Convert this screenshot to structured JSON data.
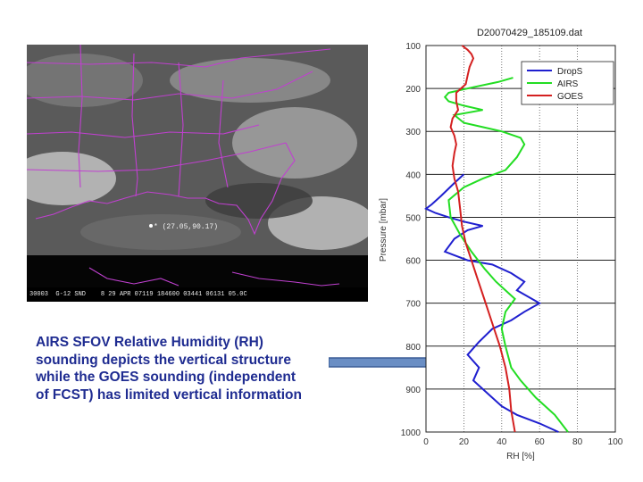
{
  "satellite": {
    "marker_label": "* (27.05,90.17)",
    "bottom_caption": "30003  G-12 SND    8 29 APR 07119 184600 03441 06131 05.0C",
    "boundary_color": "#c040d0"
  },
  "caption": {
    "lines": [
      "AIRS SFOV Relative Humidity (RH)",
      "sounding depicts the vertical structure",
      "while the GOES sounding (independent",
      "of FCST) has limited vertical information"
    ],
    "color": "#1f2c91"
  },
  "arrow": {
    "fill": "#6a8ec4",
    "stroke": "#3b5d96"
  },
  "chart_data": {
    "type": "line",
    "title": "D20070429_185109.dat",
    "xlabel": "RH [%]",
    "ylabel": "Pressure [mbar]",
    "xlim": [
      0,
      100
    ],
    "ylim": [
      1000,
      100
    ],
    "xticks": [
      0,
      20,
      40,
      60,
      80,
      100
    ],
    "yticks": [
      100,
      200,
      300,
      400,
      500,
      600,
      700,
      800,
      900,
      1000
    ],
    "grid": true,
    "legend_position": "top-right",
    "series": [
      {
        "name": "DropS",
        "color": "#1f1fcf",
        "points": [
          [
            20,
            400
          ],
          [
            15,
            420
          ],
          [
            8,
            450
          ],
          [
            3,
            470
          ],
          [
            0,
            480
          ],
          [
            5,
            490
          ],
          [
            12,
            500
          ],
          [
            20,
            510
          ],
          [
            30,
            520
          ],
          [
            22,
            530
          ],
          [
            15,
            550
          ],
          [
            10,
            580
          ],
          [
            22,
            600
          ],
          [
            35,
            610
          ],
          [
            45,
            630
          ],
          [
            52,
            650
          ],
          [
            48,
            670
          ],
          [
            56,
            690
          ],
          [
            60,
            700
          ],
          [
            52,
            720
          ],
          [
            45,
            740
          ],
          [
            35,
            760
          ],
          [
            28,
            790
          ],
          [
            22,
            820
          ],
          [
            28,
            850
          ],
          [
            25,
            880
          ],
          [
            30,
            900
          ],
          [
            35,
            920
          ],
          [
            40,
            940
          ],
          [
            48,
            960
          ],
          [
            60,
            980
          ],
          [
            70,
            1000
          ]
        ]
      },
      {
        "name": "AIRS",
        "color": "#22dd22",
        "points": [
          [
            46,
            175
          ],
          [
            38,
            185
          ],
          [
            25,
            197
          ],
          [
            12,
            210
          ],
          [
            10,
            220
          ],
          [
            12,
            230
          ],
          [
            20,
            240
          ],
          [
            30,
            250
          ],
          [
            15,
            262
          ],
          [
            20,
            280
          ],
          [
            30,
            290
          ],
          [
            40,
            300
          ],
          [
            50,
            315
          ],
          [
            52,
            330
          ],
          [
            48,
            360
          ],
          [
            42,
            390
          ],
          [
            30,
            410
          ],
          [
            20,
            430
          ],
          [
            12,
            460
          ],
          [
            13,
            500
          ],
          [
            18,
            540
          ],
          [
            24,
            580
          ],
          [
            31,
            620
          ],
          [
            37,
            650
          ],
          [
            42,
            670
          ],
          [
            47,
            690
          ],
          [
            42,
            720
          ],
          [
            40,
            760
          ],
          [
            42,
            800
          ],
          [
            45,
            850
          ],
          [
            50,
            880
          ],
          [
            58,
            920
          ],
          [
            68,
            960
          ],
          [
            75,
            1000
          ]
        ]
      },
      {
        "name": "GOES",
        "color": "#d42020",
        "points": [
          [
            19,
            100
          ],
          [
            22,
            110
          ],
          [
            24,
            120
          ],
          [
            25,
            130
          ],
          [
            24,
            140
          ],
          [
            23,
            150
          ],
          [
            22,
            170
          ],
          [
            21,
            190
          ],
          [
            16,
            210
          ],
          [
            16,
            230
          ],
          [
            17,
            250
          ],
          [
            14,
            270
          ],
          [
            13,
            290
          ],
          [
            15,
            310
          ],
          [
            16,
            330
          ],
          [
            15,
            350
          ],
          [
            14,
            380
          ],
          [
            15,
            410
          ],
          [
            17,
            440
          ],
          [
            18,
            480
          ],
          [
            19,
            520
          ],
          [
            21,
            560
          ],
          [
            24,
            600
          ],
          [
            27,
            640
          ],
          [
            30,
            680
          ],
          [
            33,
            720
          ],
          [
            36,
            760
          ],
          [
            39,
            800
          ],
          [
            42,
            850
          ],
          [
            44,
            900
          ],
          [
            45,
            950
          ],
          [
            47,
            1000
          ]
        ]
      }
    ]
  }
}
